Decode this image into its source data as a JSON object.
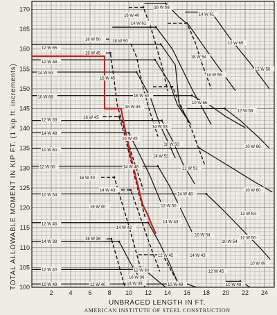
{
  "chart_data": {
    "type": "line",
    "ylabel": "TOTAL ALLOWABLE MOMENT IN KIP FT.  (1 kip ft. increments)",
    "xlabel": "UNBRACED LENGTH IN FT.",
    "credit": "AMERICAN INSTITUTE OF STEEL CONSTRUCTION",
    "xlim": [
      0,
      25
    ],
    "ylim": [
      100,
      172
    ],
    "x_ticks": [
      2,
      4,
      6,
      8,
      10,
      12,
      14,
      16,
      18,
      20,
      22,
      24
    ],
    "y_ticks": [
      100,
      105,
      110,
      115,
      120,
      125,
      130,
      135,
      140,
      145,
      150,
      155,
      160,
      165,
      170
    ],
    "grid": true,
    "colors": {
      "highlight": "#cc1f1f",
      "ink": "#1b1b1b",
      "paper": "#efece4",
      "grid": "#8e8e8e"
    },
    "curve_labels": [
      {
        "text": "16 W 58",
        "x": 12.6,
        "y": 170.5
      },
      {
        "text": "14 W 61",
        "x": 17.2,
        "y": 168.8
      },
      {
        "text": "14 W 61",
        "x": 10.2,
        "y": 166.5
      },
      {
        "text": "16 W 50",
        "x": 5.5,
        "y": 162.5
      },
      {
        "text": "18 W 50",
        "x": 8.3,
        "y": 162.0
      },
      {
        "text": "12 W 65",
        "x": 20.2,
        "y": 161.5
      },
      {
        "text": "12 W 65",
        "x": 1.0,
        "y": 160.3
      },
      {
        "text": "18 W 45",
        "x": 5.5,
        "y": 159.0
      },
      {
        "text": "12 W 58",
        "x": 1.0,
        "y": 156.8
      },
      {
        "text": "14 W 53",
        "x": 0.6,
        "y": 154.0
      },
      {
        "text": "18 W 45",
        "x": 7.0,
        "y": 152.7
      },
      {
        "text": "10 W 66",
        "x": 0.6,
        "y": 148.0
      },
      {
        "text": "16 W 50",
        "x": 10.5,
        "y": 148.2
      },
      {
        "text": "18 W 45",
        "x": 9.6,
        "y": 145.4
      },
      {
        "text": "12 W 58",
        "x": 21.2,
        "y": 144.5
      },
      {
        "text": "12 W 53",
        "x": 1.0,
        "y": 142.2
      },
      {
        "text": "16 W 45",
        "x": 5.3,
        "y": 142.8
      },
      {
        "text": "14 W 53",
        "x": 12.4,
        "y": 140.5
      },
      {
        "text": "14 W 48",
        "x": 1.0,
        "y": 138.8
      },
      {
        "text": "10 W 60",
        "x": 1.0,
        "y": 134.6
      },
      {
        "text": "10 W 66",
        "x": 22.0,
        "y": 135.5
      },
      {
        "text": "12 W 50",
        "x": 0.8,
        "y": 130.3
      },
      {
        "text": "16 W 40",
        "x": 4.9,
        "y": 127.6
      },
      {
        "text": "14 W 48",
        "x": 9.4,
        "y": 130.3
      },
      {
        "text": "12 W 53",
        "x": 15.5,
        "y": 130.0
      },
      {
        "text": "14 W 43",
        "x": 7.0,
        "y": 124.5
      },
      {
        "text": "10 W 54",
        "x": 1.0,
        "y": 123.3
      },
      {
        "text": "10 W 60",
        "x": 22.0,
        "y": 124.5
      },
      {
        "text": "16 W 40",
        "x": 6.0,
        "y": 120.3
      },
      {
        "text": "12 W 50",
        "x": 13.3,
        "y": 120.5
      },
      {
        "text": "12 W 45",
        "x": 1.0,
        "y": 116.0
      },
      {
        "text": "14 W 43",
        "x": 13.5,
        "y": 116.5
      },
      {
        "text": "14 W 43",
        "x": 8.7,
        "y": 115.0
      },
      {
        "text": "10 W 54",
        "x": 16.8,
        "y": 113.2
      },
      {
        "text": "16 W 36",
        "x": 5.5,
        "y": 112.2
      },
      {
        "text": "14 W 38",
        "x": 1.0,
        "y": 111.5
      },
      {
        "text": "12 W 45",
        "x": 13.0,
        "y": 108.0
      },
      {
        "text": "12 W 40",
        "x": 1.0,
        "y": 104.5
      },
      {
        "text": "12 W 40",
        "x": 10.5,
        "y": 104.3
      },
      {
        "text": "16 W 36",
        "x": 10.0,
        "y": 102.5
      },
      {
        "text": "10 W 49",
        "x": 1.0,
        "y": 100.7
      },
      {
        "text": "12 W 40",
        "x": 6.0,
        "y": 100.7
      },
      {
        "text": "14 W 38",
        "x": 9.8,
        "y": 101.0
      },
      {
        "text": "10 W 49",
        "x": 14.0,
        "y": 100.7
      },
      {
        "text": "10 W 49",
        "x": 20.0,
        "y": 100.7
      },
      {
        "text": "16 W 40",
        "x": 9.5,
        "y": 168.5
      },
      {
        "text": "18 W 54",
        "x": 16.4,
        "y": 158.0
      },
      {
        "text": "18 W 55",
        "x": 18.0,
        "y": 153.5
      },
      {
        "text": "18 W 50",
        "x": 13.6,
        "y": 136.0
      },
      {
        "text": "16 W 45",
        "x": 9.3,
        "y": 137.5
      },
      {
        "text": "12 W 58",
        "x": 23.0,
        "y": 155.0
      },
      {
        "text": "12 W 53",
        "x": 21.5,
        "y": 118.5
      },
      {
        "text": "10 W 66",
        "x": 16.5,
        "y": 146.5
      },
      {
        "text": "14 W 53",
        "x": 12.5,
        "y": 133.0
      },
      {
        "text": "14 W 48",
        "x": 15.0,
        "y": 123.5
      },
      {
        "text": "10 W 54",
        "x": 19.6,
        "y": 111.5
      },
      {
        "text": "12 W 50",
        "x": 21.5,
        "y": 112.5
      },
      {
        "text": "14 W 43",
        "x": 16.3,
        "y": 108.0
      },
      {
        "text": "12 W 45",
        "x": 18.2,
        "y": 104.0
      },
      {
        "text": "10 W 49",
        "x": 22.5,
        "y": 106.0
      }
    ],
    "series": [
      {
        "name": "12 W 65",
        "solid": true,
        "plateau": {
          "x0": 0,
          "x1": 13.3,
          "y": 161.2
        },
        "drop": [
          [
            13.3,
            161.2
          ],
          [
            14.8,
            156
          ],
          [
            15.2,
            146
          ],
          [
            16.4,
            141
          ]
        ]
      },
      {
        "name": "18 W 50",
        "solid": true,
        "plateau": {
          "x0": 8.3,
          "x1": 12.8,
          "y": 165.5
        },
        "drop": [
          [
            12.8,
            165.5
          ],
          [
            14.5,
            160
          ],
          [
            16.5,
            150
          ],
          [
            18.5,
            141
          ]
        ]
      },
      {
        "name": "16 W 58",
        "solid": true,
        "plateau": {
          "x0": 11.6,
          "x1": 13.8,
          "y": 171.5
        },
        "drop": [
          [
            13.8,
            171.5
          ],
          [
            15.2,
            168
          ],
          [
            16.2,
            166
          ],
          [
            18.5,
            158
          ],
          [
            21.0,
            149.5
          ]
        ]
      },
      {
        "name": "14 W 61",
        "solid": true,
        "plateau": {
          "x0": 15.8,
          "x1": 18.5,
          "y": 169.3
        },
        "drop": [
          [
            18.5,
            169.3
          ],
          [
            20.5,
            162.5
          ],
          [
            22.5,
            156.5
          ],
          [
            24.5,
            150
          ]
        ]
      },
      {
        "name": "12 W 58",
        "solid": true,
        "plateau": {
          "x0": 0,
          "x1": 12.7,
          "y": 157.3
        },
        "drop": [
          [
            12.7,
            157.3
          ],
          [
            14.2,
            151.5
          ],
          [
            15.0,
            146
          ],
          [
            16.4,
            141
          ]
        ]
      },
      {
        "name": "14 W 53",
        "solid": true,
        "plateau": {
          "x0": 0,
          "x1": 10.8,
          "y": 154.2
        },
        "drop": [
          [
            10.8,
            154.2
          ],
          [
            12.2,
            148
          ],
          [
            13.2,
            141
          ],
          [
            14.8,
            132.5
          ]
        ]
      },
      {
        "name": "10 W 66",
        "solid": true,
        "plateau": {
          "x0": 0,
          "x1": 16.5,
          "y": 148.3
        },
        "drop": [
          [
            16.5,
            148.3
          ],
          [
            18.5,
            145.6
          ],
          [
            20.0,
            143
          ],
          [
            22.0,
            140.2
          ]
        ]
      },
      {
        "name": "12 W 58 b",
        "solid": true,
        "plateau": {
          "x0": 16.0,
          "x1": 19.9,
          "y": 145.0
        },
        "drop": [
          [
            19.9,
            145.0
          ],
          [
            21.5,
            142
          ],
          [
            23.5,
            137.5
          ],
          [
            24.5,
            135
          ]
        ]
      },
      {
        "name": "12 W 53",
        "solid": true,
        "plateau": {
          "x0": 0,
          "x1": 13.4,
          "y": 142.0
        },
        "drop": [
          [
            13.4,
            142.0
          ],
          [
            14.5,
            137
          ],
          [
            15.6,
            131
          ],
          [
            16.8,
            126
          ]
        ]
      },
      {
        "name": "14 W 48",
        "solid": true,
        "plateau": {
          "x0": 0,
          "x1": 10.0,
          "y": 138.9
        },
        "drop": [
          [
            10.0,
            138.9
          ],
          [
            11.2,
            133
          ],
          [
            12.2,
            128
          ],
          [
            13.3,
            121.5
          ]
        ]
      },
      {
        "name": "10 W 60",
        "solid": true,
        "plateau": {
          "x0": 0,
          "x1": 17.3,
          "y": 135.0
        },
        "drop": [
          [
            17.3,
            135.0
          ],
          [
            19.0,
            132.5
          ],
          [
            21.0,
            129.5
          ],
          [
            23.0,
            126.5
          ],
          [
            24.8,
            124
          ]
        ]
      },
      {
        "name": "12 W 50",
        "solid": true,
        "plateau": {
          "x0": 0,
          "x1": 13.0,
          "y": 130.5
        },
        "drop": [
          [
            13.0,
            130.5
          ],
          [
            14.2,
            125.5
          ],
          [
            15.3,
            120
          ],
          [
            16.5,
            114
          ]
        ]
      },
      {
        "name": "10 W 54",
        "solid": true,
        "plateau": {
          "x0": 0,
          "x1": 18.0,
          "y": 123.5
        },
        "drop": [
          [
            18.0,
            123.5
          ],
          [
            19.5,
            120
          ],
          [
            21.5,
            115
          ],
          [
            23.5,
            110
          ],
          [
            24.6,
            107
          ]
        ]
      },
      {
        "name": "12 W 45",
        "solid": true,
        "plateau": {
          "x0": 0,
          "x1": 12.0,
          "y": 116.3
        },
        "drop": [
          [
            12.0,
            116.3
          ],
          [
            13.2,
            111
          ],
          [
            14.2,
            106
          ],
          [
            15.0,
            101.5
          ]
        ]
      },
      {
        "name": "14 W 38",
        "solid": true,
        "plateau": {
          "x0": 0,
          "x1": 9.0,
          "y": 111.5
        },
        "drop": [
          [
            9.0,
            111.5
          ],
          [
            10.2,
            106
          ],
          [
            11.2,
            102
          ],
          [
            11.7,
            100
          ]
        ]
      },
      {
        "name": "12 W 40",
        "solid": true,
        "plateau": {
          "x0": 0,
          "x1": 11.6,
          "y": 104.5
        },
        "drop": [
          [
            11.6,
            104.5
          ],
          [
            12.8,
            102
          ],
          [
            13.8,
            100
          ]
        ]
      },
      {
        "name": "10 W 49",
        "solid": true,
        "plateau": {
          "x0": 0,
          "x1": 16.0,
          "y": 100.8
        },
        "drop": [
          [
            16.0,
            100.8
          ],
          [
            17.0,
            100
          ]
        ]
      },
      {
        "name": "10 W 49 b",
        "solid": true,
        "plateau": {
          "x0": 20.0,
          "x1": 21.5,
          "y": 101.5
        },
        "drop": [
          [
            21.5,
            101.5
          ],
          [
            22.5,
            100
          ]
        ]
      },
      {
        "name": "16 W 50",
        "solid": false,
        "plateau": {
          "x0": 6.5,
          "x1": 10.0,
          "y": 162.5
        },
        "drop": [
          [
            10.0,
            162.5
          ],
          [
            10.8,
            158
          ],
          [
            11.5,
            150
          ],
          [
            12.2,
            144
          ],
          [
            13.0,
            138
          ]
        ]
      },
      {
        "name": "18 W 45",
        "solid": false,
        "plateau": {
          "x0": 6.5,
          "x1": 8.1,
          "y": 159.0
        },
        "drop": [
          [
            8.1,
            159.0
          ],
          [
            8.5,
            152
          ],
          [
            8.8,
            146
          ],
          [
            9.5,
            140
          ],
          [
            10.5,
            132
          ],
          [
            11.5,
            124.5
          ]
        ]
      },
      {
        "name": "16 W 45",
        "solid": false,
        "plateau": {
          "x0": 6.2,
          "x1": 9.0,
          "y": 143.0
        },
        "drop": [
          [
            9.0,
            143.0
          ],
          [
            9.6,
            138
          ],
          [
            10.3,
            131
          ],
          [
            11.0,
            124
          ],
          [
            11.7,
            117.5
          ]
        ]
      },
      {
        "name": "16 W 40",
        "solid": false,
        "plateau": {
          "x0": 6.0,
          "x1": 8.5,
          "y": 127.7
        },
        "drop": [
          [
            8.5,
            127.7
          ],
          [
            9.2,
            122
          ],
          [
            10.0,
            115.5
          ],
          [
            10.8,
            108.5
          ],
          [
            11.3,
            104
          ]
        ]
      },
      {
        "name": "14 W 43",
        "solid": false,
        "plateau": {
          "x0": 7.5,
          "x1": 10.2,
          "y": 124.5
        },
        "drop": [
          [
            10.2,
            124.5
          ],
          [
            11.0,
            119
          ],
          [
            11.7,
            114
          ],
          [
            12.5,
            108.5
          ],
          [
            13.2,
            104
          ]
        ]
      },
      {
        "name": "16 W 36",
        "solid": false,
        "plateau": {
          "x0": 6.0,
          "x1": 8.2,
          "y": 112.2
        },
        "drop": [
          [
            8.2,
            112.2
          ],
          [
            8.7,
            108
          ],
          [
            9.2,
            103.5
          ],
          [
            9.6,
            100
          ]
        ]
      },
      {
        "name": "16 W 40 top",
        "solid": false,
        "plateau": {
          "x0": 10.0,
          "x1": 11.5,
          "y": 170.5
        },
        "drop": [
          [
            11.5,
            170.5
          ],
          [
            12.2,
            166
          ],
          [
            12.8,
            161
          ],
          [
            13.5,
            155
          ],
          [
            14.0,
            149.5
          ]
        ]
      },
      {
        "name": "14 W 61 dash",
        "solid": false,
        "plateau": {
          "x0": 14.0,
          "x1": 16.0,
          "y": 166.5
        },
        "drop": [
          [
            16.0,
            166.5
          ],
          [
            16.8,
            162
          ],
          [
            17.6,
            156
          ],
          [
            18.5,
            150
          ]
        ]
      },
      {
        "name": "18 W 55",
        "solid": false,
        "plateau": {
          "x0": 12.5,
          "x1": 14.5,
          "y": 150.5
        },
        "drop": [
          [
            14.5,
            150.5
          ],
          [
            15.5,
            145
          ],
          [
            16.6,
            139
          ],
          [
            17.8,
            131
          ]
        ]
      },
      {
        "name": "12 W 45 dash",
        "solid": false,
        "plateau": {
          "x0": 11.0,
          "x1": 13.5,
          "y": 108.2
        },
        "drop": [
          [
            13.5,
            108.2
          ],
          [
            14.2,
            105
          ],
          [
            15.0,
            101.5
          ]
        ]
      }
    ],
    "highlight_path": [
      [
        0,
        158.2
      ],
      [
        7.5,
        158.2
      ],
      [
        7.5,
        145.0
      ],
      [
        9.2,
        145.0
      ],
      [
        9.6,
        140
      ],
      [
        10.2,
        133
      ],
      [
        10.8,
        127
      ],
      [
        11.4,
        121
      ],
      [
        12.0,
        118
      ],
      [
        12.4,
        115.5
      ],
      [
        12.8,
        113.5
      ]
    ]
  }
}
